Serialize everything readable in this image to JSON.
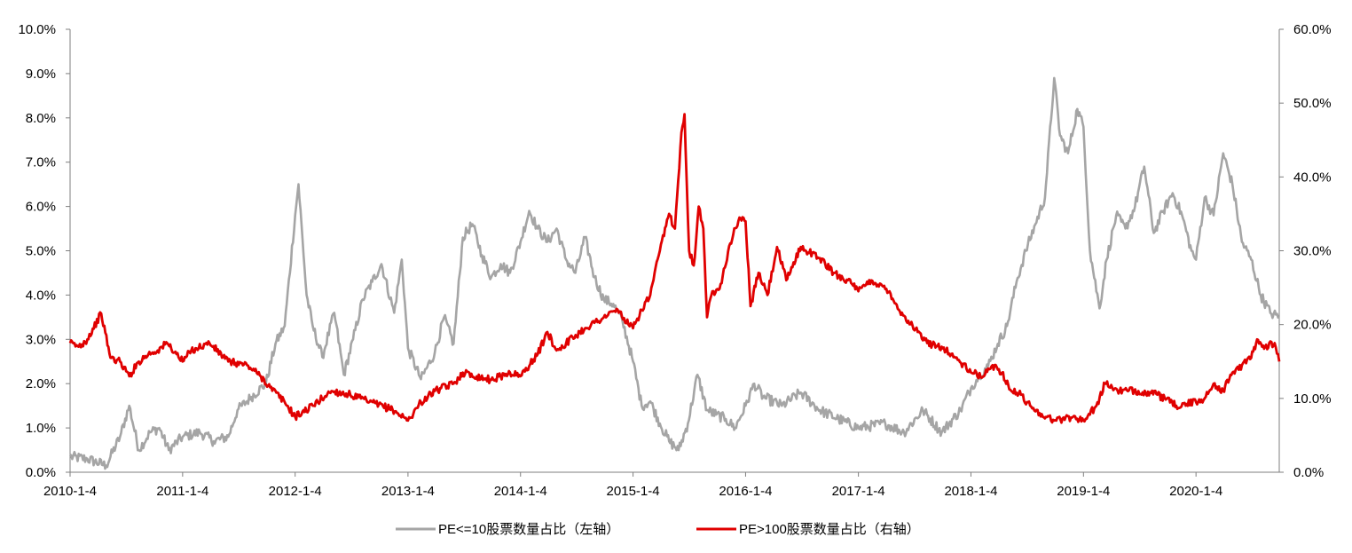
{
  "chart_data": {
    "type": "line",
    "title": "",
    "legend": {
      "position": "bottom-center"
    },
    "grid": false,
    "x_axis": {
      "ticks": [
        "2010-1-4",
        "2011-1-4",
        "2012-1-4",
        "2013-1-4",
        "2014-1-4",
        "2015-1-4",
        "2016-1-4",
        "2017-1-4",
        "2018-1-4",
        "2019-1-4",
        "2020-1-4"
      ],
      "range": [
        "2010-01-04",
        "2020-09-30"
      ]
    },
    "y_axis_left": {
      "range": [
        0,
        10
      ],
      "ticks": [
        "0.0%",
        "1.0%",
        "2.0%",
        "3.0%",
        "4.0%",
        "5.0%",
        "6.0%",
        "7.0%",
        "8.0%",
        "9.0%",
        "10.0%"
      ],
      "unit": "%"
    },
    "y_axis_right": {
      "range": [
        0,
        60
      ],
      "ticks": [
        "0.0%",
        "10.0%",
        "20.0%",
        "30.0%",
        "40.0%",
        "50.0%",
        "60.0%"
      ],
      "unit": "%"
    },
    "series": [
      {
        "name": "PE<=10股票数量占比（左轴）",
        "axis": "left",
        "color": "#a5a5a5",
        "points": [
          [
            "2010-01-04",
            0.35
          ],
          [
            "2010-03-01",
            0.3
          ],
          [
            "2010-05-01",
            0.15
          ],
          [
            "2010-06-15",
            0.8
          ],
          [
            "2010-07-15",
            1.5
          ],
          [
            "2010-08-15",
            0.5
          ],
          [
            "2010-09-20",
            0.9
          ],
          [
            "2010-10-20",
            1.0
          ],
          [
            "2010-11-20",
            0.5
          ],
          [
            "2011-01-04",
            0.8
          ],
          [
            "2011-03-01",
            0.9
          ],
          [
            "2011-04-15",
            0.7
          ],
          [
            "2011-06-01",
            0.8
          ],
          [
            "2011-07-01",
            1.4
          ],
          [
            "2011-08-15",
            1.7
          ],
          [
            "2011-10-01",
            2.0
          ],
          [
            "2011-11-01",
            2.9
          ],
          [
            "2011-12-01",
            3.3
          ],
          [
            "2012-01-04",
            5.8
          ],
          [
            "2012-01-15",
            6.5
          ],
          [
            "2012-02-10",
            4.0
          ],
          [
            "2012-03-01",
            3.3
          ],
          [
            "2012-04-01",
            2.6
          ],
          [
            "2012-05-10",
            3.6
          ],
          [
            "2012-06-10",
            2.2
          ],
          [
            "2012-07-10",
            3.0
          ],
          [
            "2012-08-10",
            3.9
          ],
          [
            "2012-09-10",
            4.3
          ],
          [
            "2012-10-10",
            4.7
          ],
          [
            "2012-11-20",
            3.6
          ],
          [
            "2012-12-15",
            4.8
          ],
          [
            "2013-01-04",
            2.8
          ],
          [
            "2013-02-15",
            2.1
          ],
          [
            "2013-04-01",
            2.7
          ],
          [
            "2013-05-01",
            3.5
          ],
          [
            "2013-06-01",
            2.9
          ],
          [
            "2013-07-01",
            5.3
          ],
          [
            "2013-08-01",
            5.6
          ],
          [
            "2013-09-01",
            4.9
          ],
          [
            "2013-10-01",
            4.4
          ],
          [
            "2013-11-01",
            4.7
          ],
          [
            "2013-12-01",
            4.5
          ],
          [
            "2014-01-04",
            5.2
          ],
          [
            "2014-02-01",
            5.9
          ],
          [
            "2014-03-01",
            5.5
          ],
          [
            "2014-04-01",
            5.2
          ],
          [
            "2014-05-01",
            5.5
          ],
          [
            "2014-06-01",
            4.8
          ],
          [
            "2014-07-01",
            4.5
          ],
          [
            "2014-08-01",
            5.3
          ],
          [
            "2014-09-01",
            4.4
          ],
          [
            "2014-10-01",
            3.9
          ],
          [
            "2014-11-01",
            3.8
          ],
          [
            "2014-12-01",
            3.4
          ],
          [
            "2015-01-04",
            2.5
          ],
          [
            "2015-02-01",
            1.5
          ],
          [
            "2015-03-01",
            1.6
          ],
          [
            "2015-04-01",
            1.1
          ],
          [
            "2015-05-01",
            0.7
          ],
          [
            "2015-06-01",
            0.5
          ],
          [
            "2015-07-01",
            1.1
          ],
          [
            "2015-08-01",
            2.2
          ],
          [
            "2015-09-01",
            1.4
          ],
          [
            "2015-10-01",
            1.3
          ],
          [
            "2015-11-01",
            1.2
          ],
          [
            "2015-12-01",
            1.0
          ],
          [
            "2016-01-04",
            1.5
          ],
          [
            "2016-02-01",
            2.0
          ],
          [
            "2016-03-01",
            1.7
          ],
          [
            "2016-05-01",
            1.5
          ],
          [
            "2016-07-01",
            1.8
          ],
          [
            "2016-09-01",
            1.4
          ],
          [
            "2016-11-01",
            1.2
          ],
          [
            "2017-01-04",
            1.0
          ],
          [
            "2017-04-01",
            1.1
          ],
          [
            "2017-06-01",
            0.9
          ],
          [
            "2017-08-01",
            1.4
          ],
          [
            "2017-10-01",
            0.9
          ],
          [
            "2017-12-01",
            1.4
          ],
          [
            "2018-01-04",
            1.9
          ],
          [
            "2018-02-01",
            2.2
          ],
          [
            "2018-03-01",
            2.4
          ],
          [
            "2018-04-01",
            2.9
          ],
          [
            "2018-05-01",
            3.3
          ],
          [
            "2018-06-01",
            4.3
          ],
          [
            "2018-07-01",
            5.0
          ],
          [
            "2018-08-01",
            5.6
          ],
          [
            "2018-09-01",
            6.2
          ],
          [
            "2018-10-01",
            8.9
          ],
          [
            "2018-10-20",
            7.6
          ],
          [
            "2018-11-15",
            7.2
          ],
          [
            "2018-12-15",
            8.2
          ],
          [
            "2019-01-04",
            7.8
          ],
          [
            "2019-01-25",
            5.0
          ],
          [
            "2019-02-25",
            3.7
          ],
          [
            "2019-03-20",
            4.8
          ],
          [
            "2019-04-20",
            5.8
          ],
          [
            "2019-05-20",
            5.5
          ],
          [
            "2019-06-20",
            6.0
          ],
          [
            "2019-07-20",
            6.9
          ],
          [
            "2019-08-20",
            5.4
          ],
          [
            "2019-09-20",
            5.9
          ],
          [
            "2019-10-20",
            6.3
          ],
          [
            "2019-11-20",
            5.8
          ],
          [
            "2019-12-20",
            5.0
          ],
          [
            "2020-01-04",
            4.8
          ],
          [
            "2020-02-01",
            6.2
          ],
          [
            "2020-03-01",
            5.8
          ],
          [
            "2020-04-01",
            7.2
          ],
          [
            "2020-05-01",
            6.5
          ],
          [
            "2020-06-01",
            5.2
          ],
          [
            "2020-07-01",
            4.8
          ],
          [
            "2020-08-01",
            4.0
          ],
          [
            "2020-09-01",
            3.6
          ],
          [
            "2020-09-30",
            3.5
          ]
        ]
      },
      {
        "name": "PE>100股票数量占比（右轴）",
        "axis": "right",
        "color": "#e00000",
        "points": [
          [
            "2010-01-04",
            17.5
          ],
          [
            "2010-02-01",
            17.0
          ],
          [
            "2010-03-01",
            18.0
          ],
          [
            "2010-04-15",
            21.5
          ],
          [
            "2010-05-15",
            15.5
          ],
          [
            "2010-06-15",
            15.0
          ],
          [
            "2010-07-15",
            13.0
          ],
          [
            "2010-08-15",
            15.0
          ],
          [
            "2010-09-15",
            16.0
          ],
          [
            "2010-10-15",
            16.5
          ],
          [
            "2010-11-15",
            17.5
          ],
          [
            "2010-12-15",
            16.0
          ],
          [
            "2011-01-04",
            15.0
          ],
          [
            "2011-02-01",
            16.5
          ],
          [
            "2011-04-01",
            17.5
          ],
          [
            "2011-06-01",
            15.0
          ],
          [
            "2011-08-01",
            14.5
          ],
          [
            "2011-09-15",
            13.0
          ],
          [
            "2011-10-15",
            11.5
          ],
          [
            "2011-12-01",
            9.5
          ],
          [
            "2012-01-04",
            7.5
          ],
          [
            "2012-03-01",
            9.0
          ],
          [
            "2012-05-01",
            11.0
          ],
          [
            "2012-07-01",
            10.5
          ],
          [
            "2012-09-01",
            9.5
          ],
          [
            "2012-11-15",
            8.5
          ],
          [
            "2013-01-04",
            7.0
          ],
          [
            "2013-02-15",
            9.5
          ],
          [
            "2013-04-01",
            11.0
          ],
          [
            "2013-06-01",
            12.0
          ],
          [
            "2013-07-01",
            13.5
          ],
          [
            "2013-08-15",
            13.0
          ],
          [
            "2013-10-01",
            12.5
          ],
          [
            "2013-12-01",
            13.5
          ],
          [
            "2014-01-04",
            13.0
          ],
          [
            "2014-03-01",
            16.0
          ],
          [
            "2014-04-01",
            19.0
          ],
          [
            "2014-05-01",
            16.5
          ],
          [
            "2014-06-01",
            17.5
          ],
          [
            "2014-08-01",
            19.5
          ],
          [
            "2014-10-01",
            21.0
          ],
          [
            "2014-11-15",
            22.0
          ],
          [
            "2014-12-20",
            20.0
          ],
          [
            "2015-01-04",
            19.5
          ],
          [
            "2015-02-01",
            22.0
          ],
          [
            "2015-03-01",
            24.0
          ],
          [
            "2015-04-01",
            30.0
          ],
          [
            "2015-05-01",
            35.0
          ],
          [
            "2015-05-20",
            33.0
          ],
          [
            "2015-06-10",
            46.0
          ],
          [
            "2015-06-20",
            48.5
          ],
          [
            "2015-07-05",
            30.0
          ],
          [
            "2015-07-20",
            28.0
          ],
          [
            "2015-08-05",
            36.0
          ],
          [
            "2015-08-20",
            33.0
          ],
          [
            "2015-09-01",
            21.0
          ],
          [
            "2015-09-15",
            24.0
          ],
          [
            "2015-10-15",
            25.5
          ],
          [
            "2015-11-15",
            31.0
          ],
          [
            "2015-12-15",
            34.5
          ],
          [
            "2016-01-04",
            34.0
          ],
          [
            "2016-01-20",
            22.5
          ],
          [
            "2016-02-15",
            27.0
          ],
          [
            "2016-03-15",
            24.0
          ],
          [
            "2016-04-15",
            30.5
          ],
          [
            "2016-05-15",
            26.0
          ],
          [
            "2016-07-01",
            30.5
          ],
          [
            "2016-09-01",
            29.0
          ],
          [
            "2016-10-15",
            27.0
          ],
          [
            "2016-12-01",
            26.0
          ],
          [
            "2017-01-04",
            24.5
          ],
          [
            "2017-02-15",
            26.0
          ],
          [
            "2017-04-15",
            24.5
          ],
          [
            "2017-05-15",
            22.0
          ],
          [
            "2017-06-15",
            20.5
          ],
          [
            "2017-07-15",
            19.0
          ],
          [
            "2017-08-15",
            17.5
          ],
          [
            "2017-10-01",
            17.0
          ],
          [
            "2017-11-15",
            15.5
          ],
          [
            "2018-01-04",
            13.5
          ],
          [
            "2018-02-15",
            13.0
          ],
          [
            "2018-03-15",
            14.5
          ],
          [
            "2018-04-15",
            13.5
          ],
          [
            "2018-05-15",
            11.0
          ],
          [
            "2018-06-15",
            10.5
          ],
          [
            "2018-07-15",
            9.0
          ],
          [
            "2018-08-15",
            8.0
          ],
          [
            "2018-10-01",
            7.0
          ],
          [
            "2018-12-01",
            7.5
          ],
          [
            "2019-01-04",
            7.0
          ],
          [
            "2019-02-15",
            9.0
          ],
          [
            "2019-03-15",
            12.0
          ],
          [
            "2019-05-01",
            11.0
          ],
          [
            "2019-07-01",
            11.0
          ],
          [
            "2019-09-01",
            10.5
          ],
          [
            "2019-11-01",
            9.0
          ],
          [
            "2020-01-04",
            9.5
          ],
          [
            "2020-02-01",
            10.0
          ],
          [
            "2020-03-01",
            12.0
          ],
          [
            "2020-04-01",
            11.0
          ],
          [
            "2020-05-01",
            13.5
          ],
          [
            "2020-06-01",
            14.5
          ],
          [
            "2020-07-01",
            15.5
          ],
          [
            "2020-07-20",
            18.0
          ],
          [
            "2020-08-15",
            17.0
          ],
          [
            "2020-09-15",
            17.5
          ],
          [
            "2020-09-30",
            15.0
          ]
        ]
      }
    ]
  }
}
